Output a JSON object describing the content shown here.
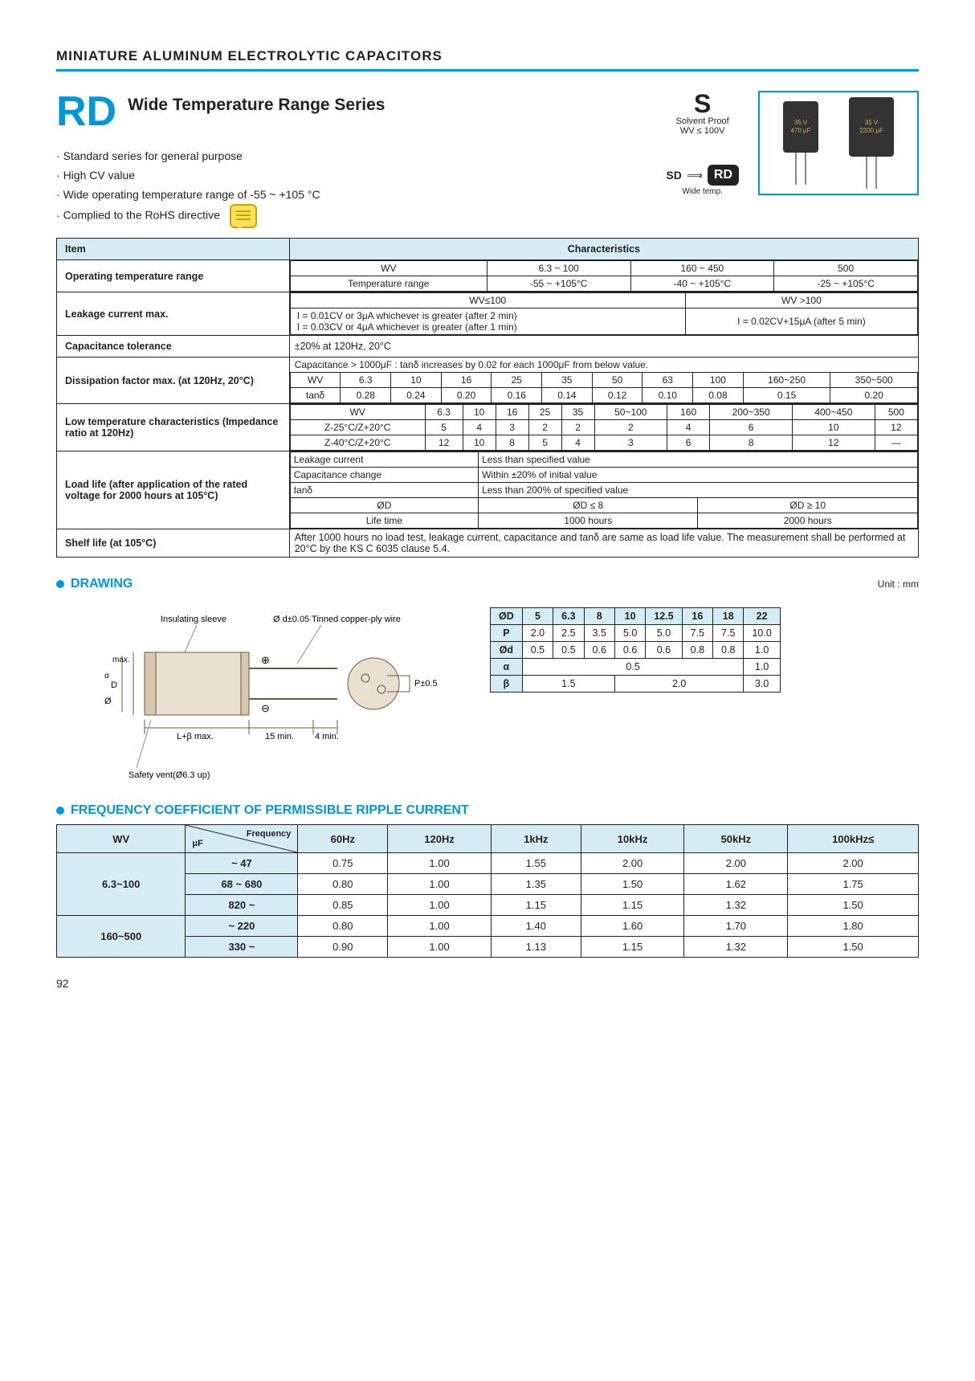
{
  "title": "MINIATURE  ALUMINUM  ELECTROLYTIC  CAPACITORS",
  "series_code": "RD",
  "series_name": "Wide Temperature Range Series",
  "bullets": [
    "Standard series for general purpose",
    "High CV value",
    "Wide operating temperature range of -55 ~ +105   °C",
    "Complied to the RoHS directive"
  ],
  "solvent": {
    "top": "Solvent Proof",
    "bottom": "WV ≤ 100V"
  },
  "sd": {
    "label": "SD",
    "badge": "RD",
    "sub": "Wide temp."
  },
  "cap_labels": {
    "small_top": "35 V",
    "small_bot": "470 μF",
    "large_top": "35 V",
    "large_bot": "2200 μF"
  },
  "char_header_item": "Item",
  "char_header_char": "Characteristics",
  "op_temp": {
    "label": "Operating temperature range",
    "r1": [
      "WV",
      "6.3 ~ 100",
      "160 ~ 450",
      "500"
    ],
    "r2": [
      "Temperature range",
      "-55 ~ +105°C",
      "-40 ~ +105°C",
      "-25 ~ +105°C"
    ]
  },
  "leak": {
    "label": "Leakage current max.",
    "h": [
      "WV≤100",
      "WV >100"
    ],
    "c1": [
      "I = 0.01CV or 3μA whichever is greater (after 2 min)",
      "I = 0.03CV or 4μA whichever is greater (after 1 min)"
    ],
    "c2": "I = 0.02CV+15μA (after 5 min)"
  },
  "ctol": {
    "label": "Capacitance tolerance",
    "val": "±20% at 120Hz, 20°C"
  },
  "diss": {
    "label": "Dissipation factor max. (at 120Hz, 20°C)",
    "note": "Capacitance > 1000μF : tanδ increases by 0.02 for each 1000μF from below value.",
    "h": [
      "WV",
      "6.3",
      "10",
      "16",
      "25",
      "35",
      "50",
      "63",
      "100",
      "160~250",
      "350~500"
    ],
    "v": [
      "tanδ",
      "0.28",
      "0.24",
      "0.20",
      "0.16",
      "0.14",
      "0.12",
      "0.10",
      "0.08",
      "0.15",
      "0.20"
    ]
  },
  "lowtemp": {
    "label": "Low temperature characteristics (Impedance ratio at 120Hz)",
    "h": [
      "WV",
      "6.3",
      "10",
      "16",
      "25",
      "35",
      "50~100",
      "160",
      "200~350",
      "400~450",
      "500"
    ],
    "r1": [
      "Z-25°C/Z+20°C",
      "5",
      "4",
      "3",
      "2",
      "2",
      "2",
      "4",
      "6",
      "10",
      "12"
    ],
    "r2": [
      "Z-40°C/Z+20°C",
      "12",
      "10",
      "8",
      "5",
      "4",
      "3",
      "6",
      "8",
      "12",
      "—"
    ]
  },
  "load": {
    "label": "Load life (after application of the rated voltage for 2000 hours at 105°C)",
    "rows": [
      [
        "Leakage current",
        "Less than specified value"
      ],
      [
        "Capacitance change",
        "Within ±20% of initial value"
      ],
      [
        "tanδ",
        "Less than 200% of specified value"
      ]
    ],
    "d": [
      "ØD",
      "ØD ≤ 8",
      "ØD ≥ 10"
    ],
    "l": [
      "Life time",
      "1000 hours",
      "2000 hours"
    ]
  },
  "shelf": {
    "label": "Shelf life (at 105°C)",
    "val": "After 1000 hours no load test, leakage current, capacitance and tanδ are same as load life value. The measurement shall be performed at 20°C by the KS C 6035 clause 5.4."
  },
  "drawing_hd": "DRAWING",
  "unit": "Unit : mm",
  "drawing_labels": {
    "sleeve": "Insulating sleeve",
    "wire": "Ø d±0.05 Tinned copper-ply wire",
    "p": "P±0.5",
    "l": "L+β max.",
    "fifteen": "15 min.",
    "four": "4 min.",
    "vent": "Safety vent(Ø6.3 up)",
    "d": "D",
    "alpha": "α",
    "phi": "Ø",
    "max": "max."
  },
  "dim": {
    "h": [
      "ØD",
      "5",
      "6.3",
      "8",
      "10",
      "12.5",
      "16",
      "18",
      "22"
    ],
    "p": [
      "P",
      "2.0",
      "2.5",
      "3.5",
      "5.0",
      "5.0",
      "7.5",
      "7.5",
      "10.0"
    ],
    "d": [
      "Ød",
      "0.5",
      "0.5",
      "0.6",
      "0.6",
      "0.6",
      "0.8",
      "0.8",
      "1.0"
    ],
    "a": [
      "α",
      {
        "span": 7,
        "v": "0.5"
      },
      "1.0"
    ],
    "b": [
      "β",
      {
        "span": 3,
        "v": "1.5"
      },
      {
        "span": 4,
        "v": "2.0"
      },
      "3.0"
    ]
  },
  "freq_hd": "FREQUENCY COEFFICIENT OF PERMISSIBLE RIPPLE CURRENT",
  "freq": {
    "cols": [
      "WV",
      "μF        Frequency",
      "60Hz",
      "120Hz",
      "1kHz",
      "10kHz",
      "50kHz",
      "100kHz≤"
    ],
    "rows": [
      {
        "wv": "6.3~100",
        "wvspan": 3,
        "uf": "~ 47",
        "v": [
          "0.75",
          "1.00",
          "1.55",
          "2.00",
          "2.00",
          "2.00"
        ]
      },
      {
        "uf": "68 ~ 680",
        "v": [
          "0.80",
          "1.00",
          "1.35",
          "1.50",
          "1.62",
          "1.75"
        ]
      },
      {
        "uf": "820 ~",
        "v": [
          "0.85",
          "1.00",
          "1.15",
          "1.15",
          "1.32",
          "1.50"
        ]
      },
      {
        "wv": "160~500",
        "wvspan": 2,
        "uf": "~ 220",
        "v": [
          "0.80",
          "1.00",
          "1.40",
          "1.60",
          "1.70",
          "1.80"
        ]
      },
      {
        "uf": "330 ~",
        "v": [
          "0.90",
          "1.00",
          "1.13",
          "1.15",
          "1.32",
          "1.50"
        ]
      }
    ]
  },
  "page": "92"
}
